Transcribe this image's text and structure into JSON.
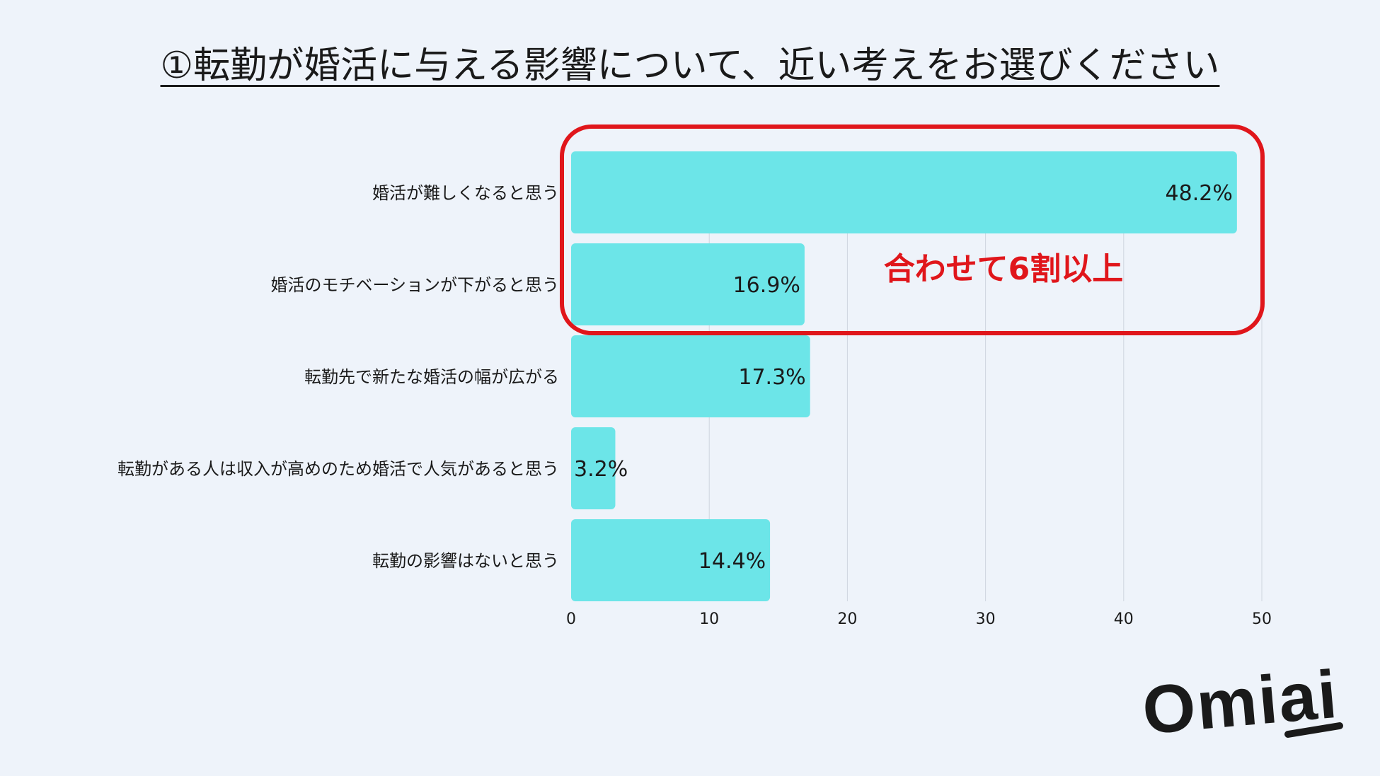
{
  "title": "①転勤が婚活に与える影響について、近い考えをお選びください",
  "callout": {
    "text": "合わせて6割以上",
    "color": "#e0161b"
  },
  "logo": {
    "text": "Omiai",
    "icon": "omiai-logo"
  },
  "colors": {
    "bar": "#6ce5e8",
    "grid": "#cfd5df",
    "text": "#1a1a1a"
  },
  "chart_data": {
    "type": "bar",
    "orientation": "horizontal",
    "categories": [
      "婚活が難しくなると思う",
      "婚活のモチベーションが下がると思う",
      "転勤先で新たな婚活の幅が広がる",
      "転勤がある人は収入が高めのため婚活で人気があると思う",
      "転勤の影響はないと思う"
    ],
    "values": [
      48.2,
      16.9,
      17.3,
      3.2,
      14.4
    ],
    "data_labels": [
      "48.2%",
      "16.9%",
      "17.3%",
      "3.2%",
      "14.4%"
    ],
    "xlim": [
      0,
      50
    ],
    "xticks": [
      "0",
      "10",
      "20",
      "30",
      "40",
      "50"
    ],
    "grid": true,
    "highlight_categories": [
      0,
      1
    ]
  }
}
